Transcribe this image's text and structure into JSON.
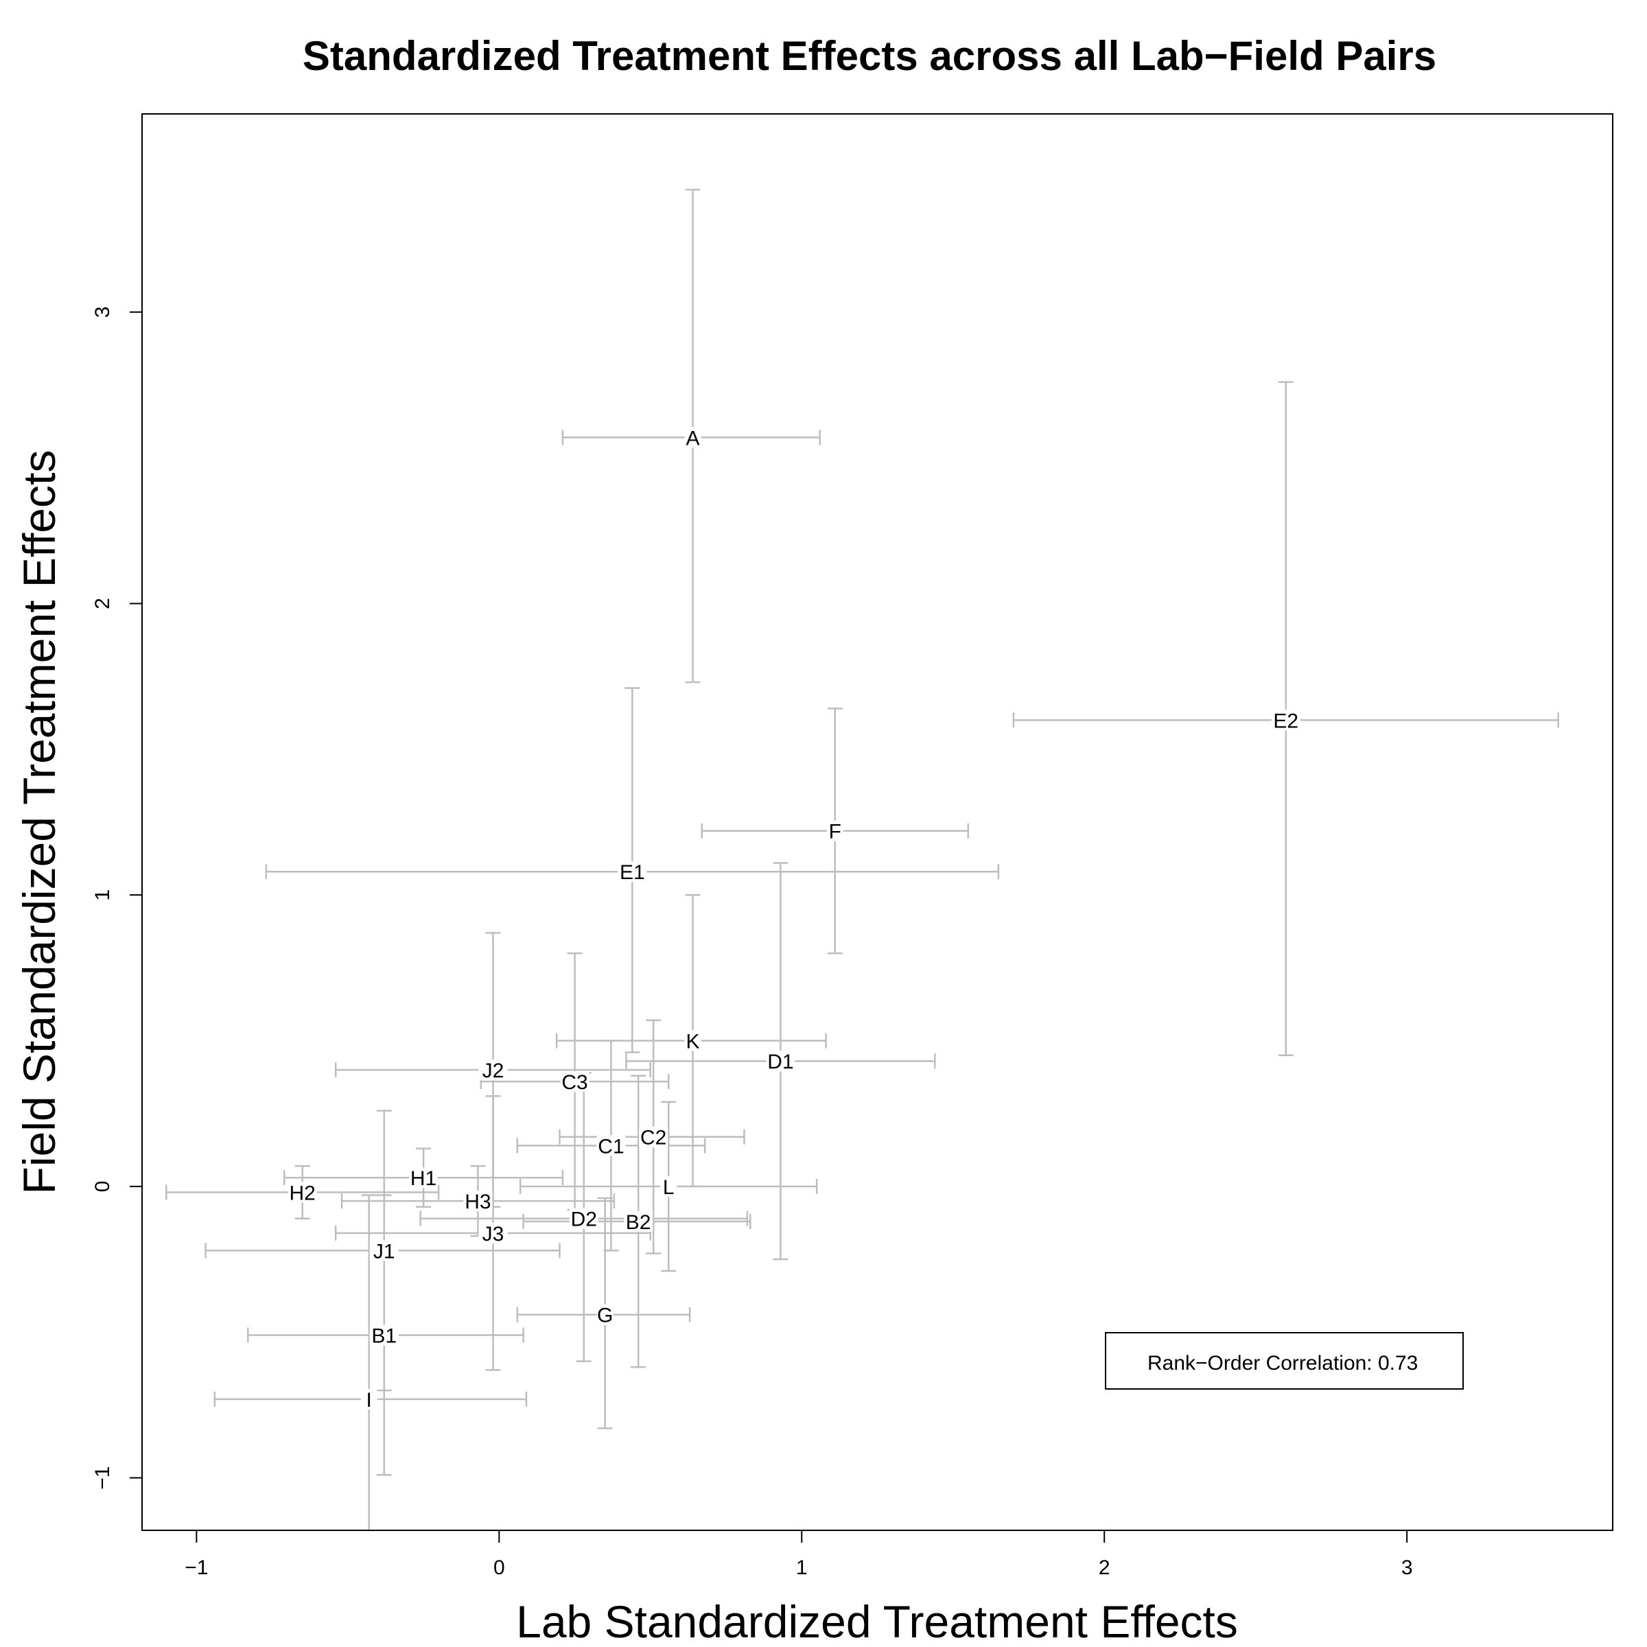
{
  "chart_data": {
    "type": "scatter",
    "title": "Standardized Treatment Effects across all Lab−Field Pairs",
    "xlabel": "Lab Standardized Treatment Effects",
    "ylabel": "Field Standardized Treatment Effects",
    "xlim": [
      -1.18,
      3.68
    ],
    "ylim": [
      -1.18,
      3.68
    ],
    "x_ticks": [
      -1,
      0,
      1,
      2,
      3
    ],
    "y_ticks": [
      -1,
      0,
      1,
      2,
      3
    ],
    "x_tick_labels": [
      "−1",
      "0",
      "1",
      "2",
      "3"
    ],
    "y_tick_labels": [
      "−1",
      "0",
      "1",
      "2",
      "3"
    ],
    "legend": {
      "text": "Rank−Order Correlation: 0.73",
      "position": "bottom-right"
    },
    "grid": false,
    "points": [
      {
        "label": "A",
        "x": 0.64,
        "y": 2.57,
        "x_lo": 0.21,
        "x_hi": 1.06,
        "y_lo": 1.73,
        "y_hi": 3.42
      },
      {
        "label": "E2",
        "x": 2.6,
        "y": 1.6,
        "x_lo": 1.7,
        "x_hi": 3.5,
        "y_lo": 0.45,
        "y_hi": 2.76
      },
      {
        "label": "F",
        "x": 1.11,
        "y": 1.22,
        "x_lo": 0.67,
        "x_hi": 1.55,
        "y_lo": 0.8,
        "y_hi": 1.64
      },
      {
        "label": "E1",
        "x": 0.44,
        "y": 1.08,
        "x_lo": -0.77,
        "x_hi": 1.65,
        "y_lo": 0.46,
        "y_hi": 1.71
      },
      {
        "label": "K",
        "x": 0.64,
        "y": 0.5,
        "x_lo": 0.19,
        "x_hi": 1.08,
        "y_lo": 0.0,
        "y_hi": 1.0
      },
      {
        "label": "D1",
        "x": 0.93,
        "y": 0.43,
        "x_lo": 0.42,
        "x_hi": 1.44,
        "y_lo": -0.25,
        "y_hi": 1.11
      },
      {
        "label": "J2",
        "x": -0.02,
        "y": 0.4,
        "x_lo": -0.54,
        "x_hi": 0.5,
        "y_lo": -0.07,
        "y_hi": 0.87
      },
      {
        "label": "C3",
        "x": 0.25,
        "y": 0.36,
        "x_lo": -0.06,
        "x_hi": 0.56,
        "y_lo": -0.08,
        "y_hi": 0.8
      },
      {
        "label": "C1",
        "x": 0.37,
        "y": 0.14,
        "x_lo": 0.06,
        "x_hi": 0.68,
        "y_lo": -0.22,
        "y_hi": 0.5
      },
      {
        "label": "C2",
        "x": 0.51,
        "y": 0.17,
        "x_lo": 0.2,
        "x_hi": 0.81,
        "y_lo": -0.23,
        "y_hi": 0.57
      },
      {
        "label": "H1",
        "x": -0.25,
        "y": 0.03,
        "x_lo": -0.71,
        "x_hi": 0.21,
        "y_lo": -0.07,
        "y_hi": 0.13
      },
      {
        "label": "L",
        "x": 0.56,
        "y": 0.0,
        "x_lo": 0.07,
        "x_hi": 1.05,
        "y_lo": -0.29,
        "y_hi": 0.29
      },
      {
        "label": "H2",
        "x": -0.65,
        "y": -0.02,
        "x_lo": -1.1,
        "x_hi": -0.2,
        "y_lo": -0.11,
        "y_hi": 0.07
      },
      {
        "label": "H3",
        "x": -0.07,
        "y": -0.05,
        "x_lo": -0.52,
        "x_hi": 0.38,
        "y_lo": -0.17,
        "y_hi": 0.07
      },
      {
        "label": "D2",
        "x": 0.28,
        "y": -0.11,
        "x_lo": -0.26,
        "x_hi": 0.82,
        "y_lo": -0.6,
        "y_hi": 0.39
      },
      {
        "label": "B2",
        "x": 0.46,
        "y": -0.12,
        "x_lo": 0.08,
        "x_hi": 0.83,
        "y_lo": -0.62,
        "y_hi": 0.38
      },
      {
        "label": "J3",
        "x": -0.02,
        "y": -0.16,
        "x_lo": -0.54,
        "x_hi": 0.5,
        "y_lo": -0.63,
        "y_hi": 0.31
      },
      {
        "label": "J1",
        "x": -0.38,
        "y": -0.22,
        "x_lo": -0.97,
        "x_hi": 0.2,
        "y_lo": -0.7,
        "y_hi": 0.26
      },
      {
        "label": "G",
        "x": 0.35,
        "y": -0.44,
        "x_lo": 0.06,
        "x_hi": 0.63,
        "y_lo": -0.83,
        "y_hi": -0.04
      },
      {
        "label": "B1",
        "x": -0.38,
        "y": -0.51,
        "x_lo": -0.83,
        "x_hi": 0.08,
        "y_lo": -0.99,
        "y_hi": -0.03
      },
      {
        "label": "I",
        "x": -0.43,
        "y": -0.73,
        "x_lo": -0.94,
        "x_hi": 0.09,
        "y_lo": -1.3,
        "y_hi": -0.03
      }
    ]
  }
}
